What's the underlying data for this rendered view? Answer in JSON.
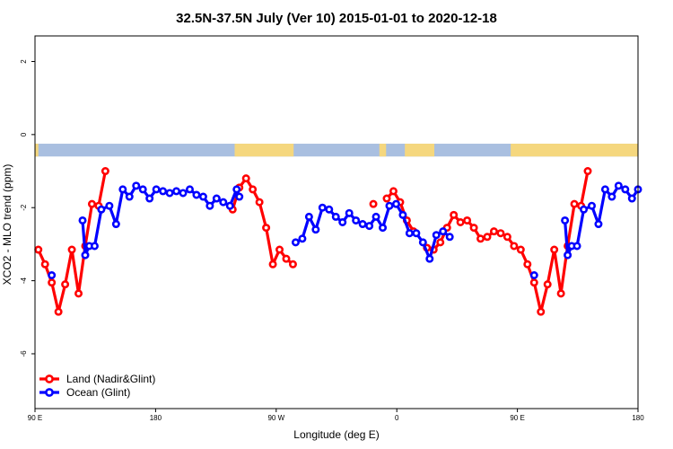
{
  "chart_data": {
    "type": "line",
    "title": "32.5N-37.5N July (Ver 10)   2015-01-01 to 2020-12-18",
    "xlabel": "Longitude (deg E)",
    "ylabel": "XCO2 - MLO trend (ppm)",
    "xlim": [
      0,
      450
    ],
    "ylim": [
      -7.5,
      2.7
    ],
    "x_ticks": [
      {
        "value": 0,
        "label": "90 E"
      },
      {
        "value": 90,
        "label": "180"
      },
      {
        "value": 180,
        "label": "90 W"
      },
      {
        "value": 270,
        "label": "0"
      },
      {
        "value": 360,
        "label": "90 E"
      },
      {
        "value": 450,
        "label": "180"
      }
    ],
    "y_ticks": [
      {
        "value": 2,
        "label": "2"
      },
      {
        "value": 0,
        "label": "0"
      },
      {
        "value": -2,
        "label": "-2"
      },
      {
        "value": -4,
        "label": "-4"
      },
      {
        "value": -6,
        "label": "-6"
      }
    ],
    "legend_position": "bottom-left",
    "land_mask_band": {
      "y_range": [
        -0.6,
        -0.25
      ],
      "ocean_color": "#a9bfe0",
      "land_color": "#f5d77e",
      "land_segments": [
        [
          0,
          2.5
        ],
        [
          149,
          193
        ],
        [
          257,
          262
        ],
        [
          276,
          298
        ],
        [
          355,
          452.5
        ]
      ]
    },
    "series": [
      {
        "name": "Land (Nadir&Glint)",
        "color": "#ff0000",
        "segments": [
          [
            [
              2.5,
              -3.15
            ],
            [
              7.5,
              -3.55
            ],
            [
              12.5,
              -4.05
            ],
            [
              17.5,
              -4.85
            ],
            [
              22.5,
              -4.1
            ],
            [
              27.5,
              -3.15
            ],
            [
              32.5,
              -4.35
            ],
            [
              37.5,
              -3.05
            ],
            [
              42.5,
              -1.9
            ],
            [
              47.5,
              -1.95
            ],
            [
              52.5,
              -1.0
            ]
          ],
          [
            [
              147.5,
              -2.05
            ],
            [
              152.5,
              -1.45
            ],
            [
              157.5,
              -1.2
            ],
            [
              162.5,
              -1.5
            ],
            [
              167.5,
              -1.85
            ],
            [
              172.5,
              -2.55
            ],
            [
              177.5,
              -3.55
            ],
            [
              182.5,
              -3.15
            ],
            [
              187.5,
              -3.4
            ],
            [
              192.5,
              -3.55
            ]
          ],
          [
            [
              252.5,
              -1.9
            ]
          ],
          [
            [
              262.5,
              -1.75
            ],
            [
              267.5,
              -1.55
            ],
            [
              272.5,
              -1.85
            ],
            [
              277.5,
              -2.35
            ],
            [
              282.5,
              -2.65
            ]
          ],
          [
            [
              292.5,
              -3.1
            ],
            [
              297.5,
              -3.15
            ],
            [
              302.5,
              -2.95
            ],
            [
              307.5,
              -2.55
            ],
            [
              312.5,
              -2.2
            ],
            [
              317.5,
              -2.4
            ],
            [
              322.5,
              -2.35
            ],
            [
              327.5,
              -2.55
            ],
            [
              332.5,
              -2.85
            ],
            [
              337.5,
              -2.8
            ],
            [
              342.5,
              -2.65
            ],
            [
              347.5,
              -2.7
            ],
            [
              352.5,
              -2.8
            ],
            [
              357.5,
              -3.05
            ],
            [
              362.5,
              -3.15
            ],
            [
              367.5,
              -3.55
            ],
            [
              372.5,
              -4.05
            ],
            [
              377.5,
              -4.85
            ],
            [
              382.5,
              -4.1
            ],
            [
              387.5,
              -3.15
            ],
            [
              392.5,
              -4.35
            ],
            [
              397.5,
              -3.05
            ],
            [
              402.5,
              -1.9
            ],
            [
              407.5,
              -1.95
            ],
            [
              412.5,
              -1.0
            ]
          ]
        ]
      },
      {
        "name": "Ocean (Glint)",
        "color": "#0000ff",
        "segments": [
          [
            [
              12.5,
              -3.85
            ]
          ],
          [
            [
              35.5,
              -2.35
            ],
            [
              37.5,
              -3.3
            ],
            [
              40.5,
              -3.05
            ],
            [
              44.5,
              -3.05
            ],
            [
              49.5,
              -2.05
            ],
            [
              55.5,
              -1.95
            ],
            [
              60.5,
              -2.45
            ],
            [
              65.5,
              -1.5
            ],
            [
              70.5,
              -1.7
            ],
            [
              75.5,
              -1.4
            ],
            [
              80.5,
              -1.5
            ],
            [
              85.5,
              -1.75
            ],
            [
              90.5,
              -1.5
            ],
            [
              95.5,
              -1.55
            ],
            [
              100.5,
              -1.6
            ],
            [
              105.5,
              -1.55
            ],
            [
              110.5,
              -1.6
            ],
            [
              115.5,
              -1.5
            ],
            [
              120.5,
              -1.65
            ],
            [
              125.5,
              -1.7
            ],
            [
              130.5,
              -1.95
            ],
            [
              135.5,
              -1.75
            ],
            [
              140.5,
              -1.85
            ],
            [
              145.5,
              -1.95
            ],
            [
              150.5,
              -1.5
            ],
            [
              152.5,
              -1.7
            ]
          ],
          [
            [
              194.5,
              -2.95
            ],
            [
              199.5,
              -2.85
            ],
            [
              204.5,
              -2.25
            ],
            [
              209.5,
              -2.6
            ],
            [
              214.5,
              -2.0
            ],
            [
              219.5,
              -2.05
            ],
            [
              224.5,
              -2.25
            ],
            [
              229.5,
              -2.4
            ],
            [
              234.5,
              -2.15
            ],
            [
              239.5,
              -2.35
            ],
            [
              244.5,
              -2.45
            ],
            [
              249.5,
              -2.5
            ],
            [
              254.5,
              -2.25
            ],
            [
              259.5,
              -2.55
            ],
            [
              264.5,
              -1.95
            ],
            [
              269.5,
              -1.9
            ],
            [
              274.5,
              -2.2
            ],
            [
              279.5,
              -2.7
            ],
            [
              284.5,
              -2.7
            ],
            [
              289.5,
              -2.95
            ],
            [
              294.5,
              -3.4
            ],
            [
              299.5,
              -2.75
            ],
            [
              304.5,
              -2.65
            ],
            [
              309.5,
              -2.8
            ]
          ],
          [
            [
              372.5,
              -3.85
            ]
          ],
          [
            [
              395.5,
              -2.35
            ],
            [
              397.5,
              -3.3
            ],
            [
              400.5,
              -3.05
            ],
            [
              404.5,
              -3.05
            ],
            [
              409.5,
              -2.05
            ],
            [
              415.5,
              -1.95
            ],
            [
              420.5,
              -2.45
            ],
            [
              425.5,
              -1.5
            ],
            [
              430.5,
              -1.7
            ],
            [
              435.5,
              -1.4
            ],
            [
              440.5,
              -1.5
            ],
            [
              445.5,
              -1.75
            ],
            [
              450,
              -1.5
            ]
          ]
        ]
      }
    ]
  }
}
